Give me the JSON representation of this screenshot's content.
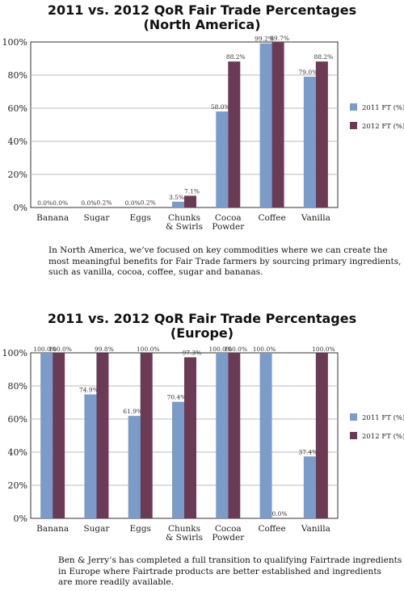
{
  "colors": {
    "series_2011": "#7b9cc8",
    "series_2012": "#6b3a55",
    "grid": "#bbbbbb",
    "axis": "#333333"
  },
  "chart_data": [
    {
      "type": "bar",
      "title": "2011 vs. 2012 QoR Fair Trade Percentages",
      "subtitle": "(North America)",
      "categories": [
        "Banana",
        "Sugar",
        "Eggs",
        "Chunks\n& Swirls",
        "Cocoa\nPowder",
        "Coffee",
        "Vanilla"
      ],
      "yticks": [
        "0%",
        "20%",
        "40%",
        "60%",
        "80%",
        "100%"
      ],
      "ylim": [
        0,
        100
      ],
      "grid": true,
      "legend": "right",
      "series": [
        {
          "name": "2011 FT (%)",
          "values": [
            0.0,
            0.0,
            0.0,
            3.5,
            58.0,
            99.2,
            79.0
          ],
          "labels": [
            "0.0%",
            "0.0%",
            "0.0%",
            "3.5%",
            "58.0%",
            "99.2%",
            "79.0%"
          ]
        },
        {
          "name": "2012 FT (%)",
          "values": [
            0.0,
            0.2,
            0.2,
            7.1,
            88.2,
            99.7,
            88.2
          ],
          "labels": [
            "0.0%",
            "0.2%",
            "0.2%",
            "7.1%",
            "88.2%",
            "99.7%",
            "88.2%"
          ]
        }
      ]
    },
    {
      "type": "bar",
      "title": "2011 vs. 2012 QoR Fair Trade Percentages",
      "subtitle": "(Europe)",
      "categories": [
        "Banana",
        "Sugar",
        "Eggs",
        "Chunks\n& Swirls",
        "Cocoa\nPowder",
        "Coffee",
        "Vanilla"
      ],
      "yticks": [
        "0%",
        "20%",
        "40%",
        "60%",
        "80%",
        "100%"
      ],
      "ylim": [
        0,
        100
      ],
      "grid": true,
      "legend": "right",
      "series": [
        {
          "name": "2011 FT (%)",
          "values": [
            100.0,
            74.9,
            61.9,
            70.4,
            100.0,
            100.0,
            37.4
          ],
          "labels": [
            "100.0%",
            "74.9%",
            "61.9%",
            "70.4%",
            "100.0%",
            "100.0%",
            "37.4%"
          ]
        },
        {
          "name": "2012 FT (%)",
          "values": [
            100.0,
            99.8,
            100.0,
            97.3,
            100.0,
            0.0,
            100.0
          ],
          "labels": [
            "100.0%",
            "99.8%",
            "100.0%",
            "97.3%",
            "100.0%",
            "0.0%",
            "100.0%"
          ]
        }
      ]
    }
  ],
  "captions": [
    {
      "lines": [
        "In North America, we’ve focused on key commodities where we can create the",
        "most meaningful benefits for Fair Trade farmers by sourcing primary ingredients,",
        "such as vanilla, cocoa, coffee, sugar and bananas."
      ]
    },
    {
      "lines": [
        "Ben & Jerry’s has completed a full transition to qualifying Fairtrade ingredients",
        "in Europe where Fairtrade products are better established and ingredients",
        "are more readily available."
      ]
    }
  ]
}
